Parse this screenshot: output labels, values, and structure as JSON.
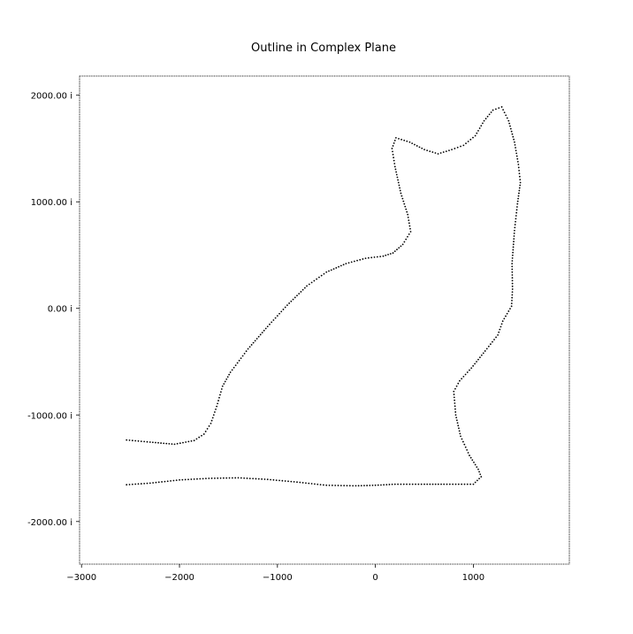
{
  "chart_data": {
    "type": "scatter",
    "title": "Outline in Complex Plane",
    "xlabel": "",
    "ylabel": "",
    "xlim": [
      -3020,
      1980
    ],
    "ylim": [
      -2400,
      2180
    ],
    "grid": false,
    "x_ticks": [
      {
        "value": -3000,
        "label": "−3000"
      },
      {
        "value": -2000,
        "label": "−2000"
      },
      {
        "value": -1000,
        "label": "−1000"
      },
      {
        "value": 0,
        "label": "0"
      },
      {
        "value": 1000,
        "label": "1000"
      }
    ],
    "y_ticks": [
      {
        "value": 2000,
        "label": "2000.00 i"
      },
      {
        "value": 1000,
        "label": "1000.00 i"
      },
      {
        "value": 0,
        "label": "0.00 i"
      },
      {
        "value": -1000,
        "label": "-1000.00 i"
      },
      {
        "value": -2000,
        "label": "-2000.00 i"
      }
    ],
    "marker_color": "#000000",
    "outline_keypoints": [
      [
        -2540,
        -1235
      ],
      [
        -2300,
        -1255
      ],
      [
        -2050,
        -1275
      ],
      [
        -1850,
        -1240
      ],
      [
        -1750,
        -1180
      ],
      [
        -1680,
        -1080
      ],
      [
        -1620,
        -920
      ],
      [
        -1560,
        -730
      ],
      [
        -1480,
        -600
      ],
      [
        -1300,
        -380
      ],
      [
        -1100,
        -170
      ],
      [
        -900,
        30
      ],
      [
        -700,
        210
      ],
      [
        -500,
        340
      ],
      [
        -300,
        420
      ],
      [
        -100,
        470
      ],
      [
        80,
        490
      ],
      [
        180,
        520
      ],
      [
        280,
        600
      ],
      [
        360,
        720
      ],
      [
        330,
        880
      ],
      [
        260,
        1080
      ],
      [
        200,
        1330
      ],
      [
        170,
        1500
      ],
      [
        210,
        1600
      ],
      [
        350,
        1560
      ],
      [
        500,
        1490
      ],
      [
        640,
        1450
      ],
      [
        780,
        1490
      ],
      [
        900,
        1530
      ],
      [
        1020,
        1620
      ],
      [
        1110,
        1760
      ],
      [
        1200,
        1860
      ],
      [
        1290,
        1890
      ],
      [
        1360,
        1760
      ],
      [
        1420,
        1560
      ],
      [
        1460,
        1350
      ],
      [
        1480,
        1180
      ],
      [
        1450,
        980
      ],
      [
        1420,
        730
      ],
      [
        1395,
        420
      ],
      [
        1400,
        180
      ],
      [
        1390,
        20
      ],
      [
        1300,
        -120
      ],
      [
        1250,
        -250
      ],
      [
        1120,
        -400
      ],
      [
        980,
        -560
      ],
      [
        860,
        -680
      ],
      [
        800,
        -780
      ],
      [
        820,
        -1000
      ],
      [
        870,
        -1200
      ],
      [
        960,
        -1380
      ],
      [
        1050,
        -1510
      ],
      [
        1080,
        -1580
      ],
      [
        1000,
        -1650
      ],
      [
        880,
        -1650
      ],
      [
        700,
        -1650
      ],
      [
        500,
        -1650
      ],
      [
        200,
        -1650
      ],
      [
        0,
        -1660
      ],
      [
        -200,
        -1665
      ],
      [
        -500,
        -1660
      ],
      [
        -800,
        -1630
      ],
      [
        -1100,
        -1605
      ],
      [
        -1400,
        -1590
      ],
      [
        -1700,
        -1595
      ],
      [
        -2000,
        -1610
      ],
      [
        -2300,
        -1640
      ],
      [
        -2540,
        -1655
      ]
    ]
  }
}
